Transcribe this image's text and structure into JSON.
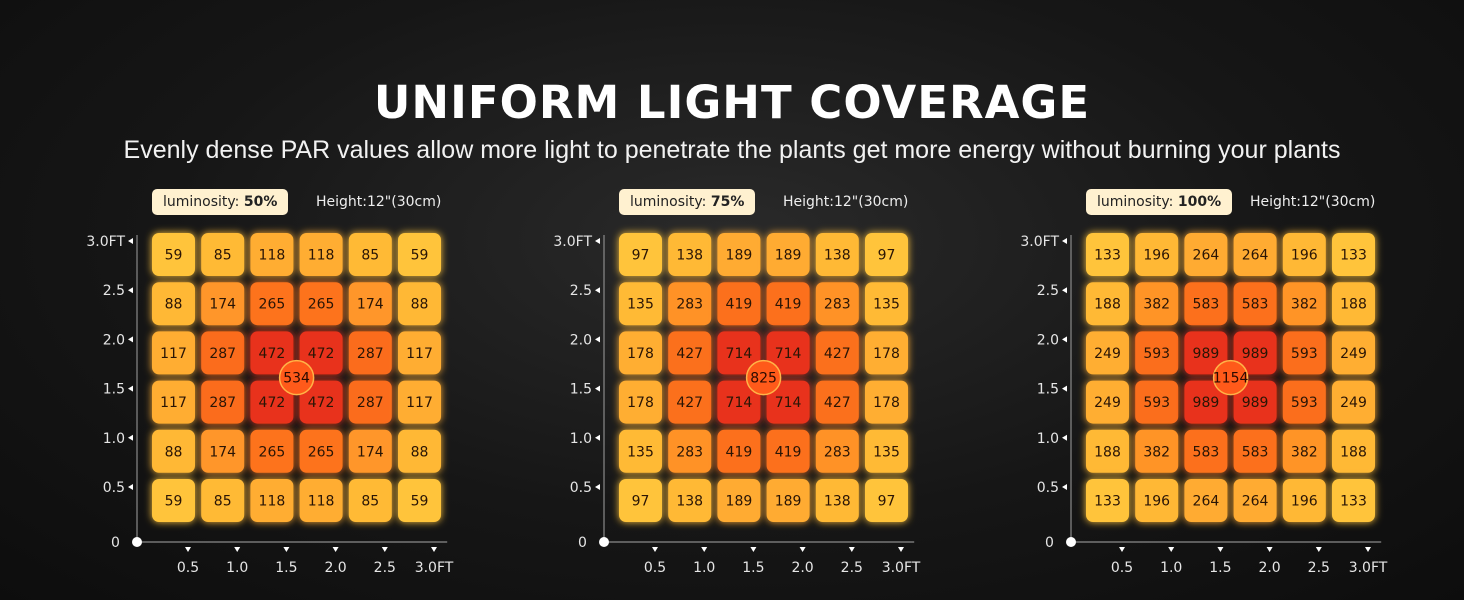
{
  "header": {
    "title": "UNIFORM LIGHT COVERAGE",
    "subtitle": "Evenly dense PAR values allow more light to penetrate the plants get more energy without burning your plants"
  },
  "colors": {
    "background": "#141414",
    "low": "#ffc43a",
    "mid": "#ff7a1e",
    "high": "#e8301a",
    "badge": "#fff1d0"
  },
  "chart_data": [
    {
      "type": "heatmap",
      "luminosity_label": "luminosity:",
      "luminosity_value": "50%",
      "height_label": "Height:12\"(30cm)",
      "x_ticks": [
        "0.5",
        "1.0",
        "1.5",
        "2.0",
        "2.5",
        "3.0FT"
      ],
      "y_ticks": [
        "3.0FT",
        "2.5",
        "2.0",
        "1.5",
        "1.0",
        "0.5"
      ],
      "origin_label": "0",
      "center_value": "534",
      "grid": [
        [
          59,
          85,
          118,
          118,
          85,
          59
        ],
        [
          88,
          174,
          265,
          265,
          174,
          88
        ],
        [
          117,
          287,
          472,
          472,
          287,
          117
        ],
        [
          117,
          287,
          472,
          472,
          287,
          117
        ],
        [
          88,
          174,
          265,
          265,
          174,
          88
        ],
        [
          59,
          85,
          118,
          118,
          85,
          59
        ]
      ]
    },
    {
      "type": "heatmap",
      "luminosity_label": "luminosity:",
      "luminosity_value": "75%",
      "height_label": "Height:12\"(30cm)",
      "x_ticks": [
        "0.5",
        "1.0",
        "1.5",
        "2.0",
        "2.5",
        "3.0FT"
      ],
      "y_ticks": [
        "3.0FT",
        "2.5",
        "2.0",
        "1.5",
        "1.0",
        "0.5"
      ],
      "origin_label": "0",
      "center_value": "825",
      "grid": [
        [
          97,
          138,
          189,
          189,
          138,
          97
        ],
        [
          135,
          283,
          419,
          419,
          283,
          135
        ],
        [
          178,
          427,
          714,
          714,
          427,
          178
        ],
        [
          178,
          427,
          714,
          714,
          427,
          178
        ],
        [
          135,
          283,
          419,
          419,
          283,
          135
        ],
        [
          97,
          138,
          189,
          189,
          138,
          97
        ]
      ]
    },
    {
      "type": "heatmap",
      "luminosity_label": "luminosity:",
      "luminosity_value": "100%",
      "height_label": "Height:12\"(30cm)",
      "x_ticks": [
        "0.5",
        "1.0",
        "1.5",
        "2.0",
        "2.5",
        "3.0FT"
      ],
      "y_ticks": [
        "3.0FT",
        "2.5",
        "2.0",
        "1.5",
        "1.0",
        "0.5"
      ],
      "origin_label": "0",
      "center_value": "1154",
      "grid": [
        [
          133,
          196,
          264,
          264,
          196,
          133
        ],
        [
          188,
          382,
          583,
          583,
          382,
          188
        ],
        [
          249,
          593,
          989,
          989,
          593,
          249
        ],
        [
          249,
          593,
          989,
          989,
          593,
          249
        ],
        [
          188,
          382,
          583,
          583,
          382,
          188
        ],
        [
          133,
          196,
          264,
          264,
          196,
          133
        ]
      ]
    }
  ]
}
